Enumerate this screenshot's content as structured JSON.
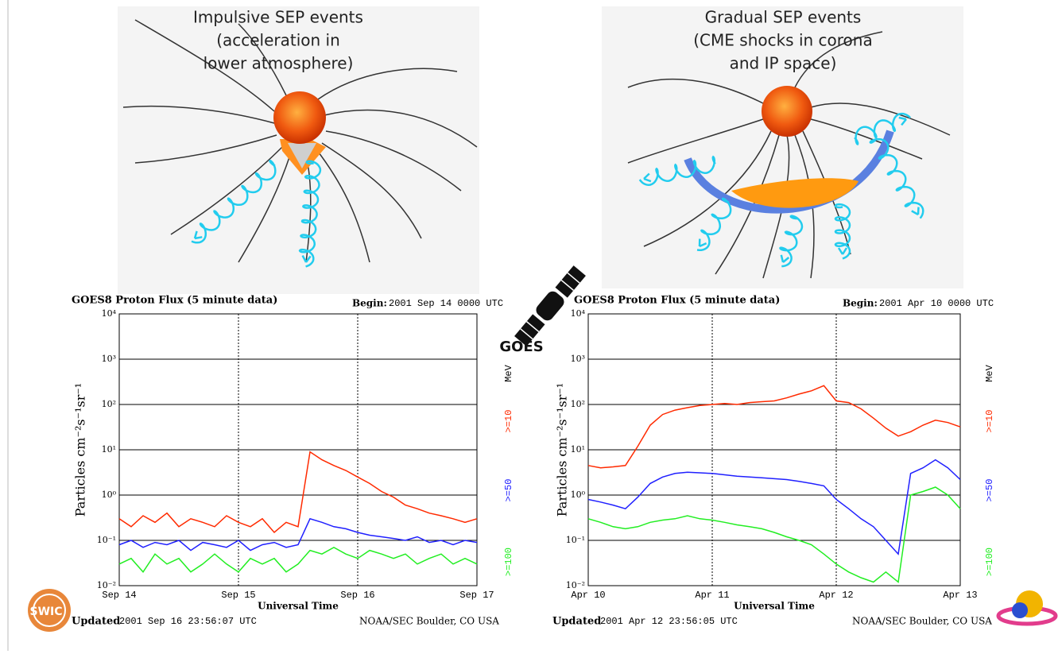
{
  "diagrams": [
    {
      "title_lines": [
        "Impulsive SEP events",
        "(acceleration in",
        "lower atmosphere)"
      ]
    },
    {
      "title_lines": [
        "Gradual SEP events",
        "(CME shocks in corona",
        "and IP   space)"
      ]
    }
  ],
  "satellite_label": "GOES",
  "logo_text": "SWIC",
  "chart_data": [
    {
      "type": "line",
      "title": "GOES8 Proton Flux (5 minute data)",
      "begin_label": "Begin:",
      "begin_value": "2001 Sep 14 0000 UTC",
      "ylabel": "Particles cm⁻²s⁻¹sr⁻¹",
      "xlabel": "Universal Time",
      "unit_label": "MeV",
      "x": [
        0,
        0.1,
        0.2,
        0.3,
        0.4,
        0.5,
        0.6,
        0.7,
        0.8,
        0.9,
        1,
        1.1,
        1.2,
        1.3,
        1.4,
        1.5,
        1.6,
        1.7,
        1.8,
        1.9,
        2,
        2.1,
        2.2,
        2.3,
        2.4,
        2.5,
        2.6,
        2.7,
        2.8,
        2.9,
        3
      ],
      "xlim": [
        0,
        3
      ],
      "xticks": [
        {
          "value": 0,
          "label": "Sep 14"
        },
        {
          "value": 1,
          "label": "Sep 15"
        },
        {
          "value": 2,
          "label": "Sep 16"
        },
        {
          "value": 3,
          "label": "Sep 17"
        }
      ],
      "ylim": [
        0.01,
        10000
      ],
      "log_scale": true,
      "grid": true,
      "yticks": [
        {
          "value": 0.01,
          "label": "10⁻²"
        },
        {
          "value": 0.1,
          "label": "10⁻¹"
        },
        {
          "value": 1,
          "label": "10⁰"
        },
        {
          "value": 10,
          "label": "10¹"
        },
        {
          "value": 100,
          "label": "10²"
        },
        {
          "value": 1000,
          "label": "10³"
        },
        {
          "value": 10000,
          "label": "10⁴"
        }
      ],
      "series": [
        {
          "name": ">=10",
          "color": "#ff2a00",
          "values": [
            0.3,
            0.2,
            0.35,
            0.25,
            0.4,
            0.2,
            0.3,
            0.25,
            0.2,
            0.35,
            0.25,
            0.2,
            0.3,
            0.15,
            0.25,
            0.2,
            9,
            6,
            4.5,
            3.5,
            2.5,
            1.8,
            1.2,
            0.9,
            0.6,
            0.5,
            0.4,
            0.35,
            0.3,
            0.25,
            0.3
          ]
        },
        {
          "name": ">=50",
          "color": "#2020ff",
          "values": [
            0.08,
            0.1,
            0.07,
            0.09,
            0.08,
            0.1,
            0.06,
            0.09,
            0.08,
            0.07,
            0.1,
            0.06,
            0.08,
            0.09,
            0.07,
            0.08,
            0.3,
            0.25,
            0.2,
            0.18,
            0.15,
            0.13,
            0.12,
            0.11,
            0.1,
            0.12,
            0.09,
            0.1,
            0.08,
            0.1,
            0.09
          ]
        },
        {
          "name": ">=100",
          "color": "#22ee22",
          "values": [
            0.03,
            0.04,
            0.02,
            0.05,
            0.03,
            0.04,
            0.02,
            0.03,
            0.05,
            0.03,
            0.02,
            0.04,
            0.03,
            0.04,
            0.02,
            0.03,
            0.06,
            0.05,
            0.07,
            0.05,
            0.04,
            0.06,
            0.05,
            0.04,
            0.05,
            0.03,
            0.04,
            0.05,
            0.03,
            0.04,
            0.03
          ]
        }
      ],
      "footer": {
        "updated_label": "Updated",
        "updated_value": "2001 Sep 16 23:56:07 UTC",
        "credit": "NOAA/SEC Boulder, CO USA"
      }
    },
    {
      "type": "line",
      "title": "GOES8 Proton Flux (5 minute data)",
      "begin_label": "Begin:",
      "begin_value": "2001 Apr 10 0000 UTC",
      "ylabel": "Particles cm⁻²s⁻¹sr⁻¹",
      "xlabel": "Universal Time",
      "unit_label": "MeV",
      "x": [
        0,
        0.1,
        0.2,
        0.3,
        0.4,
        0.5,
        0.6,
        0.7,
        0.8,
        0.9,
        1,
        1.1,
        1.2,
        1.3,
        1.4,
        1.5,
        1.6,
        1.7,
        1.8,
        1.9,
        2,
        2.1,
        2.2,
        2.3,
        2.4,
        2.5,
        2.6,
        2.7,
        2.8,
        2.9,
        3
      ],
      "xlim": [
        0,
        3
      ],
      "xticks": [
        {
          "value": 0,
          "label": "Apr 10"
        },
        {
          "value": 1,
          "label": "Apr 11"
        },
        {
          "value": 2,
          "label": "Apr 12"
        },
        {
          "value": 3,
          "label": "Apr 13"
        }
      ],
      "ylim": [
        0.01,
        10000
      ],
      "log_scale": true,
      "grid": true,
      "yticks": [
        {
          "value": 0.01,
          "label": "10⁻²"
        },
        {
          "value": 0.1,
          "label": "10⁻¹"
        },
        {
          "value": 1,
          "label": "10⁰"
        },
        {
          "value": 10,
          "label": "10¹"
        },
        {
          "value": 100,
          "label": "10²"
        },
        {
          "value": 1000,
          "label": "10³"
        },
        {
          "value": 10000,
          "label": "10⁴"
        }
      ],
      "series": [
        {
          "name": ">=10",
          "color": "#ff2a00",
          "values": [
            4.5,
            4,
            4.2,
            4.5,
            12,
            35,
            60,
            75,
            85,
            95,
            100,
            105,
            100,
            110,
            115,
            120,
            140,
            170,
            200,
            260,
            120,
            110,
            80,
            50,
            30,
            20,
            25,
            35,
            45,
            40,
            32
          ]
        },
        {
          "name": ">=50",
          "color": "#2020ff",
          "values": [
            0.8,
            0.7,
            0.6,
            0.5,
            0.9,
            1.8,
            2.5,
            3,
            3.2,
            3.1,
            3,
            2.8,
            2.6,
            2.5,
            2.4,
            2.3,
            2.2,
            2,
            1.8,
            1.6,
            0.8,
            0.5,
            0.3,
            0.2,
            0.1,
            0.05,
            3,
            4,
            6,
            4,
            2.2
          ]
        },
        {
          "name": ">=100",
          "color": "#22ee22",
          "values": [
            0.3,
            0.25,
            0.2,
            0.18,
            0.2,
            0.25,
            0.28,
            0.3,
            0.35,
            0.3,
            0.28,
            0.25,
            0.22,
            0.2,
            0.18,
            0.15,
            0.12,
            0.1,
            0.08,
            0.05,
            0.03,
            0.02,
            0.015,
            0.012,
            0.02,
            0.012,
            1,
            1.2,
            1.5,
            1,
            0.5
          ]
        }
      ],
      "footer": {
        "updated_label": "Updated",
        "updated_value": "2001 Apr 12 23:56:05 UTC",
        "credit": "NOAA/SEC Boulder, CO USA"
      }
    }
  ]
}
